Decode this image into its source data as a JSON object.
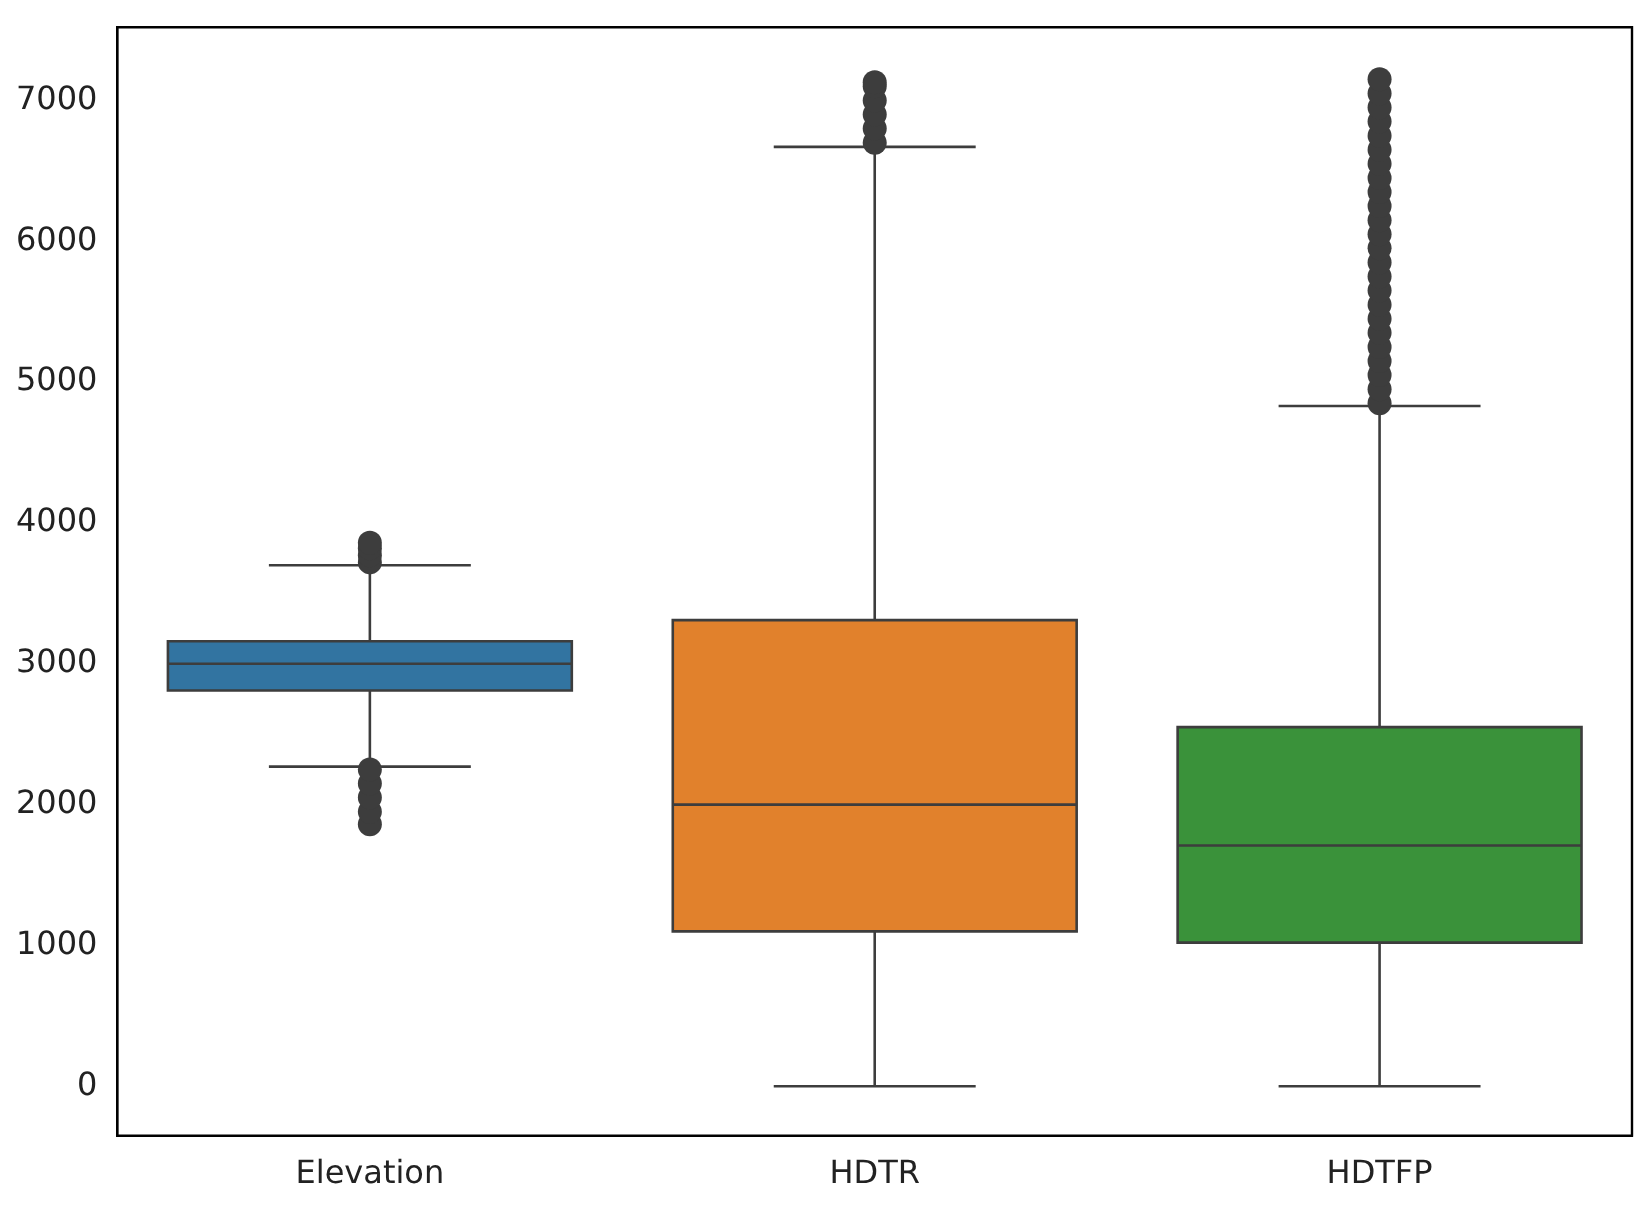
{
  "chart_data": {
    "type": "box",
    "categories": [
      "Elevation",
      "HDTR",
      "HDTFP"
    ],
    "colors": [
      "#3274a1",
      "#e1812c",
      "#3a923a"
    ],
    "boxes": [
      {
        "low": 2270,
        "q1": 2810,
        "median": 3000,
        "q3": 3160,
        "high": 3700,
        "outliers": [
          1860,
          1950,
          2050,
          2150,
          2250,
          3720,
          3770,
          3820,
          3860
        ]
      },
      {
        "low": 0,
        "q1": 1100,
        "median": 2000,
        "q3": 3310,
        "high": 6670,
        "outliers": [
          6700,
          6800,
          6900,
          7000,
          7100,
          7130
        ]
      },
      {
        "low": 0,
        "q1": 1020,
        "median": 1710,
        "q3": 2550,
        "high": 4830,
        "outliers": [
          4850,
          4950,
          5050,
          5150,
          5250,
          5350,
          5450,
          5550,
          5650,
          5750,
          5850,
          5950,
          6050,
          6150,
          6250,
          6350,
          6450,
          6550,
          6650,
          6750,
          6850,
          6950,
          7050,
          7150
        ]
      }
    ],
    "ylim": [
      -350,
      7520
    ],
    "yticks": [
      0,
      1000,
      2000,
      3000,
      4000,
      5000,
      6000,
      7000
    ],
    "marker": "circle"
  }
}
